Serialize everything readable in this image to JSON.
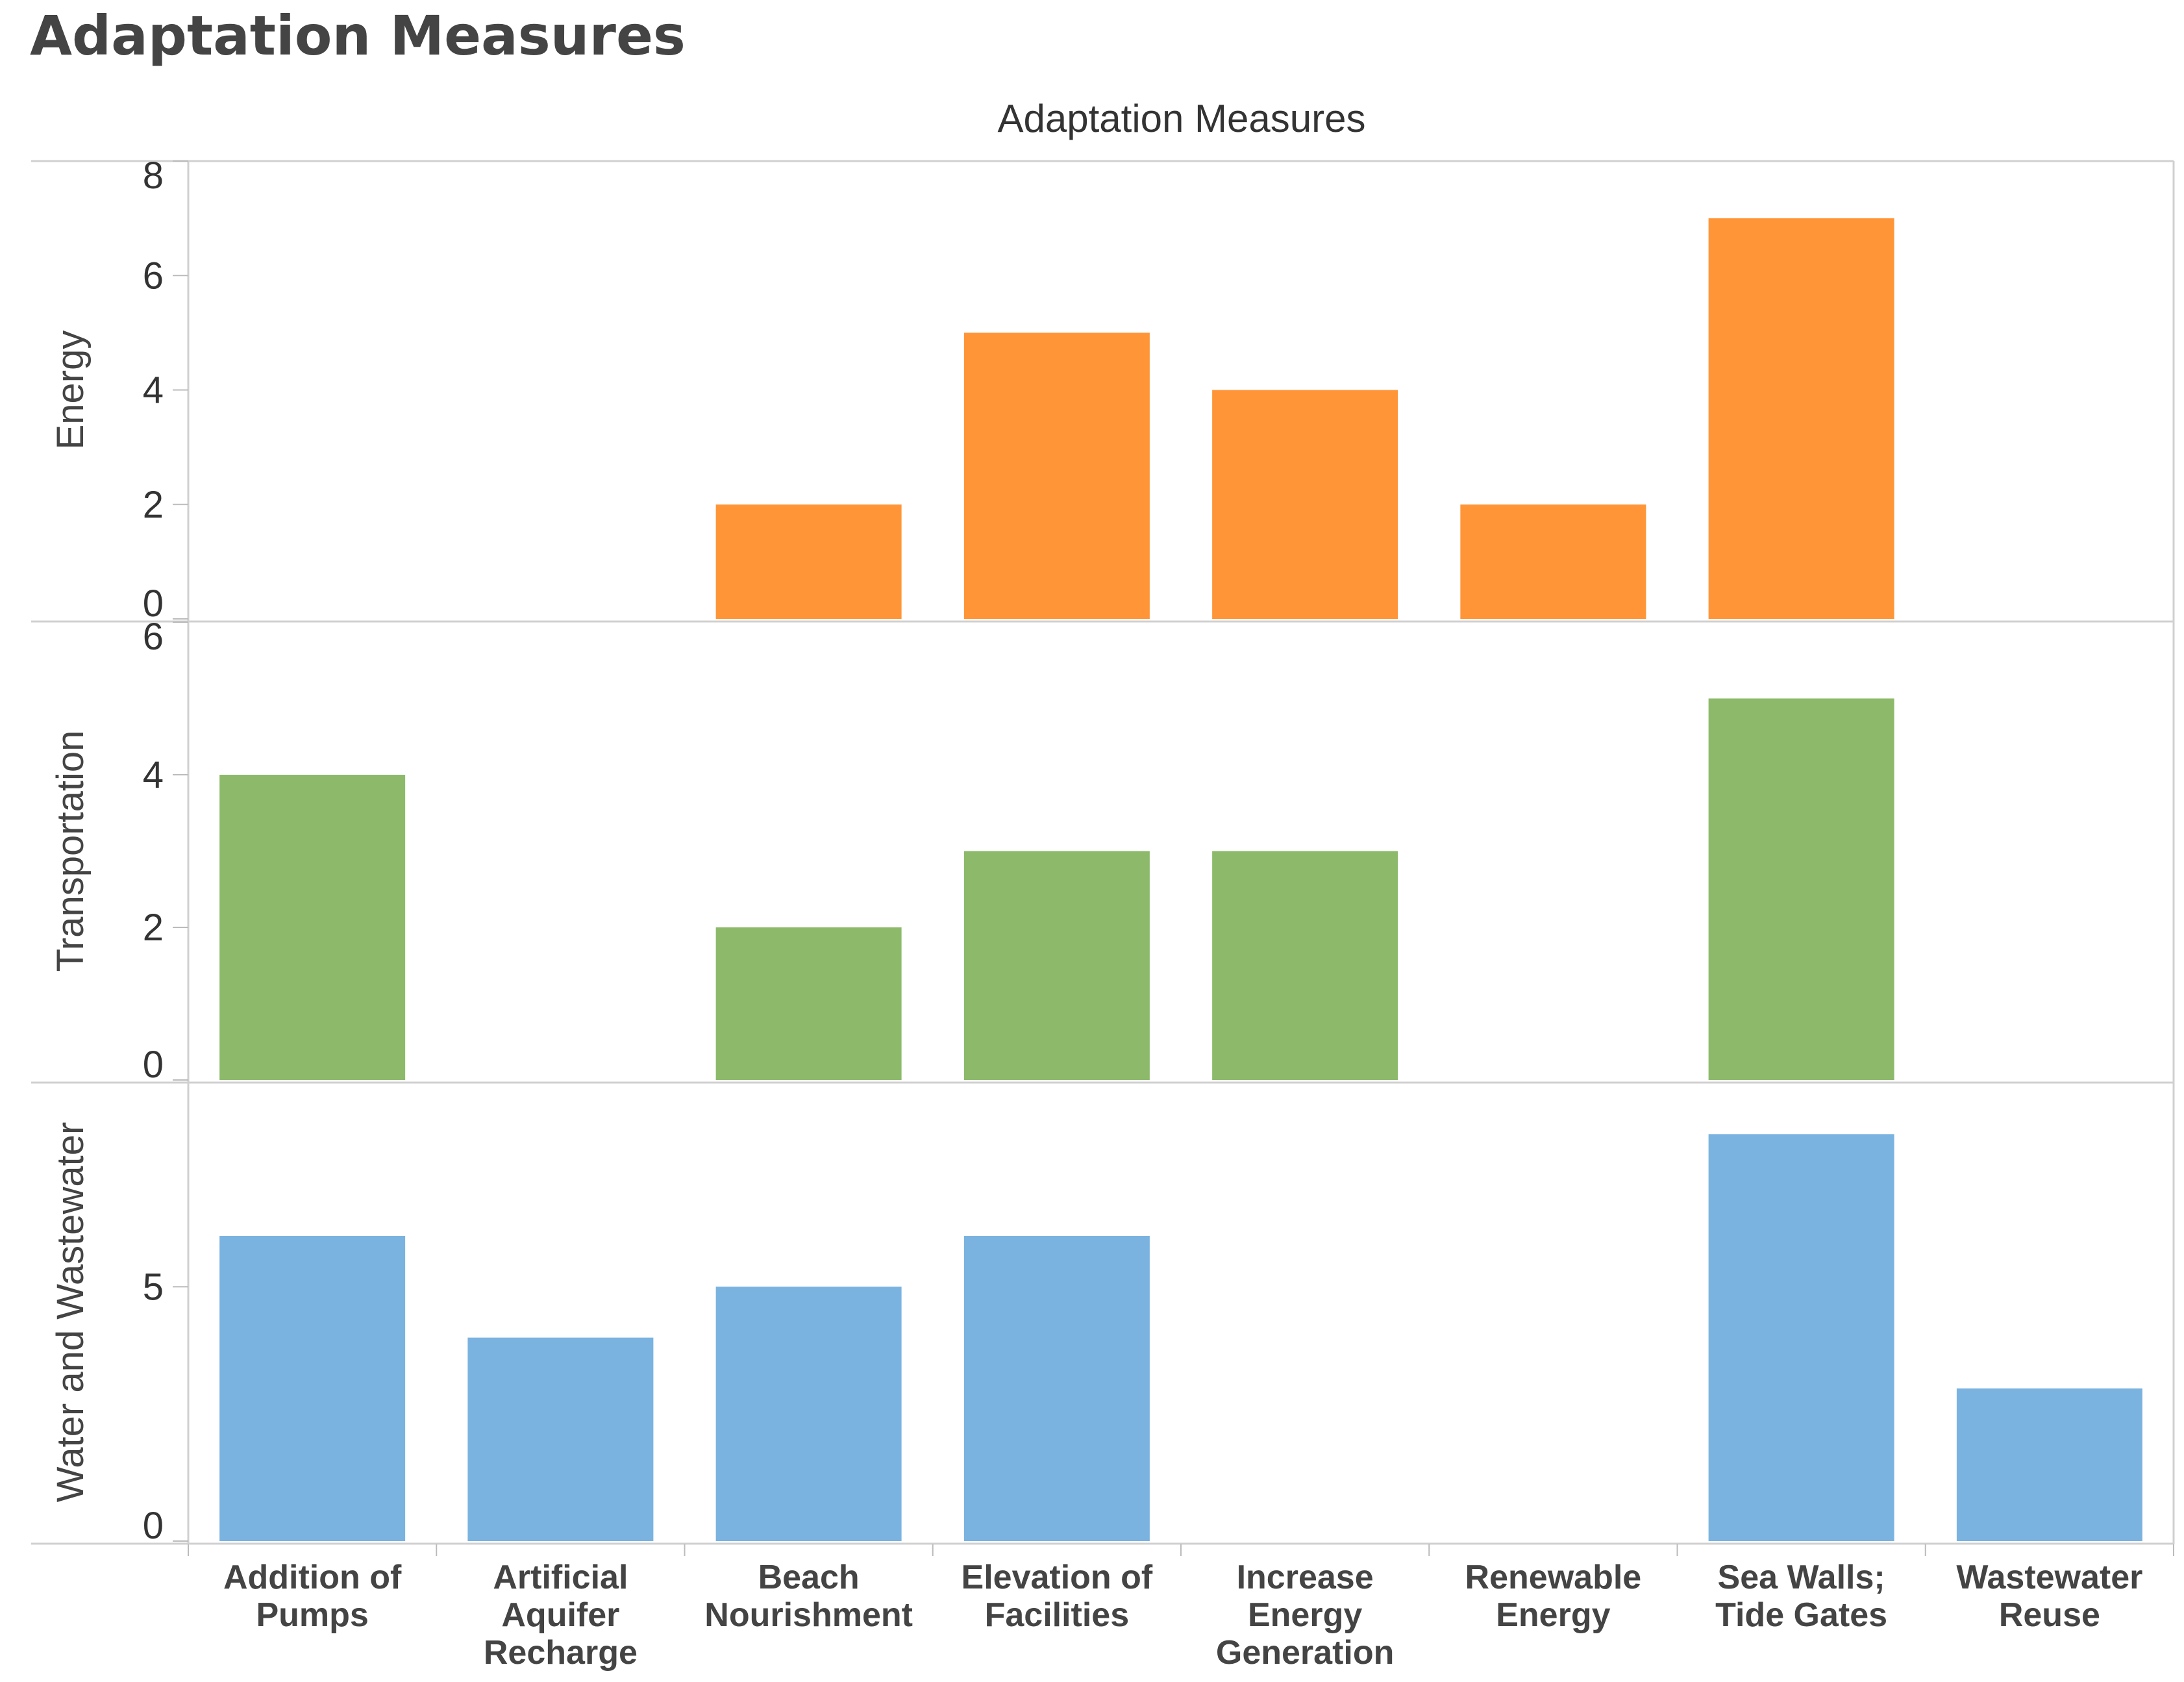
{
  "page": {
    "title": "Adaptation Measures"
  },
  "chart_data": {
    "type": "bar",
    "title": "Adaptation Measures",
    "categories": [
      [
        "Addition of",
        "Pumps"
      ],
      [
        "Artificial",
        "Aquifer",
        "Recharge"
      ],
      [
        "Beach",
        "Nourishment"
      ],
      [
        "Elevation of",
        "Facilities"
      ],
      [
        "Increase",
        "Energy",
        "Generation"
      ],
      [
        "Renewable",
        "Energy"
      ],
      [
        "Sea Walls;",
        "Tide Gates"
      ],
      [
        "Wastewater",
        "Reuse"
      ]
    ],
    "series": [
      {
        "name": "Energy",
        "color": "#FF9537",
        "ylim": [
          0,
          8
        ],
        "ticks": [
          0,
          2,
          4,
          6,
          8
        ],
        "values": [
          null,
          null,
          2,
          5,
          4,
          2,
          7,
          null
        ]
      },
      {
        "name": "Transportation",
        "color": "#8CBA6A",
        "ylim": [
          0,
          6
        ],
        "ticks": [
          0,
          2,
          4,
          6
        ],
        "values": [
          4,
          null,
          2,
          3,
          3,
          null,
          5,
          null
        ]
      },
      {
        "name": "Water and Wastewater",
        "color": "#7AB3E0",
        "ylim": [
          0,
          9
        ],
        "ticks": [
          0,
          5
        ],
        "values": [
          6,
          4,
          5,
          6,
          null,
          null,
          8,
          3
        ]
      }
    ],
    "grid": false,
    "legend": "none"
  }
}
